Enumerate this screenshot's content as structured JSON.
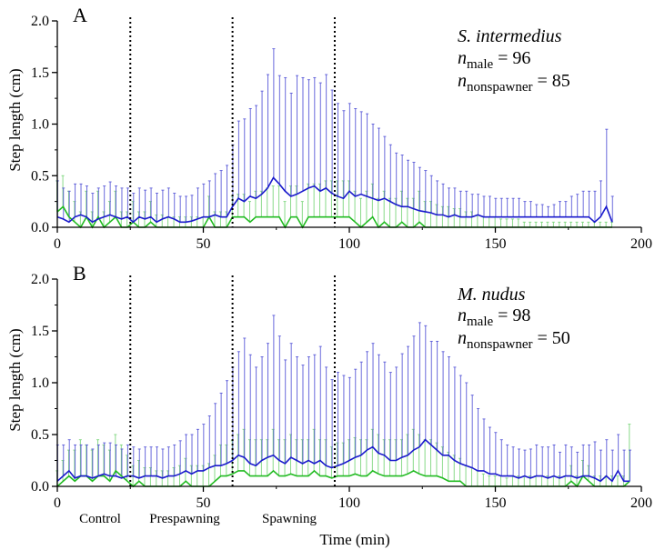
{
  "figure": {
    "xlabel": "Time (min)",
    "ylabel": "Step length (cm)",
    "phase_labels": [
      "Control",
      "Prespawning",
      "Spawning"
    ]
  },
  "colors": {
    "male": "#1a1acc",
    "nonspawner": "#22bb22",
    "male_err": "#5a5ad8",
    "nonspawner_err": "#7dd67d",
    "phase_line": "#000000"
  },
  "chart_data": [
    {
      "type": "line",
      "panel_label": "A",
      "species": "S. intermedius",
      "n_lines": [
        {
          "base": "n",
          "sub": "male",
          "rest": " = 96"
        },
        {
          "base": "n",
          "sub": "nonspawner",
          "rest": " = 85"
        }
      ],
      "xlim": [
        0,
        200
      ],
      "ylim": [
        0,
        2.0
      ],
      "xticks": [
        "0",
        "50",
        "100",
        "150",
        "200"
      ],
      "yticks": [
        "0.0",
        "0.5",
        "1.0",
        "1.5",
        "2.0"
      ],
      "phase_boundaries": [
        25,
        60,
        95
      ],
      "x": [
        0,
        2,
        4,
        6,
        8,
        10,
        12,
        14,
        16,
        18,
        20,
        22,
        24,
        26,
        28,
        30,
        32,
        34,
        36,
        38,
        40,
        42,
        44,
        46,
        48,
        50,
        52,
        54,
        56,
        58,
        60,
        62,
        64,
        66,
        68,
        70,
        72,
        74,
        76,
        78,
        80,
        82,
        84,
        86,
        88,
        90,
        92,
        94,
        96,
        98,
        100,
        102,
        104,
        106,
        108,
        110,
        112,
        114,
        116,
        118,
        120,
        122,
        124,
        126,
        128,
        130,
        132,
        134,
        136,
        138,
        140,
        142,
        144,
        146,
        148,
        150,
        152,
        154,
        156,
        158,
        160,
        162,
        164,
        166,
        168,
        170,
        172,
        174,
        176,
        178,
        180,
        182,
        184,
        186,
        188,
        190
      ],
      "series": [
        {
          "name": "male",
          "values": [
            0.1,
            0.08,
            0.05,
            0.1,
            0.12,
            0.1,
            0.05,
            0.08,
            0.1,
            0.12,
            0.1,
            0.08,
            0.1,
            0.05,
            0.1,
            0.08,
            0.1,
            0.05,
            0.08,
            0.1,
            0.08,
            0.05,
            0.05,
            0.06,
            0.08,
            0.1,
            0.1,
            0.12,
            0.1,
            0.1,
            0.2,
            0.28,
            0.25,
            0.3,
            0.28,
            0.32,
            0.38,
            0.48,
            0.42,
            0.35,
            0.3,
            0.32,
            0.35,
            0.38,
            0.4,
            0.35,
            0.38,
            0.33,
            0.3,
            0.28,
            0.35,
            0.3,
            0.32,
            0.3,
            0.28,
            0.26,
            0.28,
            0.25,
            0.22,
            0.2,
            0.2,
            0.18,
            0.16,
            0.15,
            0.14,
            0.12,
            0.12,
            0.1,
            0.12,
            0.1,
            0.1,
            0.1,
            0.12,
            0.1,
            0.1,
            0.1,
            0.1,
            0.1,
            0.1,
            0.1,
            0.1,
            0.1,
            0.1,
            0.1,
            0.1,
            0.1,
            0.1,
            0.1,
            0.1,
            0.1,
            0.1,
            0.1,
            0.05,
            0.1,
            0.2,
            0.05
          ],
          "err": [
            0.35,
            0.3,
            0.3,
            0.32,
            0.3,
            0.3,
            0.28,
            0.3,
            0.3,
            0.32,
            0.3,
            0.3,
            0.28,
            0.28,
            0.28,
            0.28,
            0.28,
            0.28,
            0.28,
            0.28,
            0.25,
            0.25,
            0.25,
            0.25,
            0.3,
            0.32,
            0.35,
            0.4,
            0.45,
            0.5,
            0.6,
            0.75,
            0.8,
            0.85,
            0.9,
            1.0,
            1.1,
            1.25,
            1.05,
            1.1,
            1.0,
            1.15,
            1.1,
            1.05,
            1.05,
            1.05,
            1.1,
            1.0,
            0.9,
            0.85,
            0.85,
            0.85,
            0.8,
            0.8,
            0.72,
            0.7,
            0.6,
            0.55,
            0.5,
            0.5,
            0.45,
            0.45,
            0.42,
            0.4,
            0.36,
            0.33,
            0.3,
            0.28,
            0.26,
            0.25,
            0.25,
            0.22,
            0.2,
            0.2,
            0.2,
            0.18,
            0.18,
            0.18,
            0.18,
            0.18,
            0.15,
            0.15,
            0.12,
            0.12,
            0.1,
            0.12,
            0.15,
            0.15,
            0.2,
            0.22,
            0.25,
            0.25,
            0.3,
            0.35,
            0.75,
            0.25
          ]
        },
        {
          "name": "nonspawner",
          "values": [
            0.15,
            0.2,
            0.1,
            0.05,
            0.0,
            0.1,
            0.0,
            0.1,
            0.0,
            0.05,
            0.1,
            0.0,
            0.0,
            0.05,
            0.0,
            0.0,
            0.05,
            0.0,
            0.0,
            0.0,
            0.0,
            0.0,
            0.0,
            0.0,
            0.0,
            0.0,
            0.1,
            0.0,
            0.0,
            0.0,
            0.1,
            0.1,
            0.1,
            0.05,
            0.1,
            0.1,
            0.1,
            0.1,
            0.1,
            0.0,
            0.1,
            0.1,
            0.0,
            0.1,
            0.1,
            0.1,
            0.1,
            0.1,
            0.1,
            0.1,
            0.1,
            0.05,
            0.0,
            0.05,
            0.1,
            0.0,
            0.05,
            0.0,
            0.0,
            0.05,
            0.0,
            0.0,
            0.05,
            0.0,
            0.0,
            0.0,
            0.0,
            0.0,
            0.0,
            0.0,
            0.0,
            0.0,
            0.0,
            0.0,
            0.0,
            0.0,
            0.0,
            0.0,
            0.0,
            0.0,
            0.0,
            0.0,
            0.0,
            0.0,
            0.0,
            0.0,
            0.0,
            0.0,
            0.0,
            0.0,
            0.0,
            0.0,
            0.0,
            0.0,
            0.0,
            0.0
          ],
          "err": [
            0.3,
            0.3,
            0.25,
            0.2,
            0.15,
            0.25,
            0.15,
            0.25,
            0.15,
            0.2,
            0.25,
            0.15,
            0.15,
            0.2,
            0.15,
            0.15,
            0.2,
            0.12,
            0.12,
            0.1,
            0.1,
            0.1,
            0.1,
            0.1,
            0.1,
            0.1,
            0.2,
            0.15,
            0.15,
            0.15,
            0.2,
            0.22,
            0.22,
            0.2,
            0.25,
            0.25,
            0.28,
            0.3,
            0.3,
            0.25,
            0.3,
            0.3,
            0.25,
            0.32,
            0.32,
            0.32,
            0.35,
            0.35,
            0.35,
            0.35,
            0.35,
            0.3,
            0.28,
            0.3,
            0.32,
            0.28,
            0.3,
            0.28,
            0.28,
            0.3,
            0.28,
            0.28,
            0.3,
            0.25,
            0.25,
            0.22,
            0.2,
            0.2,
            0.18,
            0.18,
            0.15,
            0.15,
            0.12,
            0.1,
            0.1,
            0.1,
            0.08,
            0.08,
            0.08,
            0.08,
            0.05,
            0.05,
            0.05,
            0.05,
            0.05,
            0.05,
            0.05,
            0.05,
            0.05,
            0.05,
            0.05,
            0.05,
            0.05,
            0.05,
            0.05,
            0.05
          ]
        }
      ]
    },
    {
      "type": "line",
      "panel_label": "B",
      "species": "M. nudus",
      "n_lines": [
        {
          "base": "n",
          "sub": "male",
          "rest": " = 98"
        },
        {
          "base": "n",
          "sub": "nonspawner",
          "rest": " = 50"
        }
      ],
      "xlim": [
        0,
        200
      ],
      "ylim": [
        0,
        2.0
      ],
      "xticks": [
        "0",
        "50",
        "100",
        "150",
        "200"
      ],
      "yticks": [
        "0.0",
        "0.5",
        "1.0",
        "1.5",
        "2.0"
      ],
      "phase_boundaries": [
        25,
        60,
        95
      ],
      "x": [
        0,
        2,
        4,
        6,
        8,
        10,
        12,
        14,
        16,
        18,
        20,
        22,
        24,
        26,
        28,
        30,
        32,
        34,
        36,
        38,
        40,
        42,
        44,
        46,
        48,
        50,
        52,
        54,
        56,
        58,
        60,
        62,
        64,
        66,
        68,
        70,
        72,
        74,
        76,
        78,
        80,
        82,
        84,
        86,
        88,
        90,
        92,
        94,
        96,
        98,
        100,
        102,
        104,
        106,
        108,
        110,
        112,
        114,
        116,
        118,
        120,
        122,
        124,
        126,
        128,
        130,
        132,
        134,
        136,
        138,
        140,
        142,
        144,
        146,
        148,
        150,
        152,
        154,
        156,
        158,
        160,
        162,
        164,
        166,
        168,
        170,
        172,
        174,
        176,
        178,
        180,
        182,
        184,
        186,
        188,
        190,
        192,
        194,
        196
      ],
      "series": [
        {
          "name": "male",
          "values": [
            0.05,
            0.1,
            0.15,
            0.08,
            0.1,
            0.1,
            0.08,
            0.1,
            0.12,
            0.1,
            0.1,
            0.08,
            0.1,
            0.1,
            0.08,
            0.1,
            0.1,
            0.1,
            0.08,
            0.1,
            0.1,
            0.12,
            0.15,
            0.12,
            0.15,
            0.15,
            0.18,
            0.2,
            0.2,
            0.22,
            0.25,
            0.3,
            0.28,
            0.22,
            0.2,
            0.25,
            0.28,
            0.3,
            0.25,
            0.22,
            0.28,
            0.25,
            0.22,
            0.25,
            0.22,
            0.25,
            0.2,
            0.18,
            0.2,
            0.22,
            0.25,
            0.28,
            0.3,
            0.35,
            0.38,
            0.32,
            0.3,
            0.25,
            0.25,
            0.28,
            0.3,
            0.35,
            0.38,
            0.45,
            0.4,
            0.35,
            0.3,
            0.3,
            0.25,
            0.22,
            0.2,
            0.18,
            0.15,
            0.15,
            0.12,
            0.12,
            0.1,
            0.1,
            0.1,
            0.08,
            0.1,
            0.08,
            0.1,
            0.1,
            0.08,
            0.1,
            0.08,
            0.1,
            0.1,
            0.08,
            0.1,
            0.1,
            0.08,
            0.05,
            0.1,
            0.05,
            0.15,
            0.05,
            0.05
          ],
          "err": [
            0.35,
            0.3,
            0.3,
            0.32,
            0.3,
            0.3,
            0.28,
            0.3,
            0.3,
            0.32,
            0.3,
            0.28,
            0.3,
            0.28,
            0.28,
            0.28,
            0.28,
            0.28,
            0.28,
            0.28,
            0.3,
            0.32,
            0.35,
            0.38,
            0.4,
            0.45,
            0.5,
            0.6,
            0.7,
            0.8,
            0.9,
            1.0,
            1.15,
            1.05,
            0.95,
            1.0,
            1.1,
            1.35,
            1.2,
            1.0,
            1.1,
            1.0,
            0.95,
            1.0,
            1.05,
            1.1,
            0.95,
            0.85,
            0.9,
            0.85,
            0.8,
            0.85,
            0.9,
            0.95,
            1.0,
            0.95,
            0.9,
            0.85,
            0.9,
            1.0,
            1.05,
            1.1,
            1.2,
            1.1,
            1.0,
            1.05,
            1.0,
            0.95,
            0.9,
            0.85,
            0.8,
            0.7,
            0.6,
            0.5,
            0.45,
            0.4,
            0.35,
            0.3,
            0.28,
            0.28,
            0.25,
            0.28,
            0.3,
            0.28,
            0.3,
            0.3,
            0.25,
            0.3,
            0.28,
            0.25,
            0.3,
            0.3,
            0.35,
            0.3,
            0.35,
            0.3,
            0.35,
            0.3,
            0.3
          ]
        },
        {
          "name": "nonspawner",
          "values": [
            0.0,
            0.05,
            0.1,
            0.05,
            0.1,
            0.1,
            0.05,
            0.1,
            0.1,
            0.05,
            0.15,
            0.1,
            0.05,
            0.0,
            0.05,
            0.0,
            0.0,
            0.0,
            0.0,
            0.0,
            0.0,
            0.0,
            0.05,
            0.0,
            0.0,
            0.0,
            0.0,
            0.05,
            0.1,
            0.1,
            0.12,
            0.15,
            0.15,
            0.1,
            0.1,
            0.1,
            0.1,
            0.15,
            0.1,
            0.1,
            0.12,
            0.1,
            0.1,
            0.1,
            0.15,
            0.1,
            0.1,
            0.08,
            0.1,
            0.1,
            0.1,
            0.12,
            0.1,
            0.1,
            0.15,
            0.12,
            0.1,
            0.1,
            0.1,
            0.1,
            0.12,
            0.15,
            0.12,
            0.1,
            0.1,
            0.1,
            0.08,
            0.05,
            0.05,
            0.05,
            0.0,
            0.0,
            0.0,
            0.0,
            0.0,
            0.0,
            0.0,
            0.0,
            0.0,
            0.0,
            0.0,
            0.0,
            0.0,
            0.0,
            0.0,
            0.0,
            0.0,
            0.0,
            0.05,
            0.0,
            0.1,
            0.05,
            0.0,
            0.0,
            0.0,
            0.0,
            0.0,
            0.0,
            0.05
          ],
          "err": [
            0.15,
            0.2,
            0.25,
            0.3,
            0.35,
            0.3,
            0.3,
            0.35,
            0.3,
            0.3,
            0.35,
            0.3,
            0.25,
            0.2,
            0.2,
            0.18,
            0.18,
            0.15,
            0.15,
            0.15,
            0.18,
            0.2,
            0.22,
            0.2,
            0.2,
            0.2,
            0.22,
            0.25,
            0.3,
            0.3,
            0.32,
            0.35,
            0.4,
            0.35,
            0.35,
            0.35,
            0.35,
            0.4,
            0.35,
            0.35,
            0.38,
            0.35,
            0.35,
            0.35,
            0.4,
            0.35,
            0.35,
            0.3,
            0.32,
            0.32,
            0.35,
            0.35,
            0.35,
            0.35,
            0.4,
            0.38,
            0.35,
            0.35,
            0.35,
            0.35,
            0.38,
            0.4,
            0.38,
            0.35,
            0.35,
            0.32,
            0.3,
            0.28,
            0.25,
            0.22,
            0.2,
            0.18,
            0.15,
            0.12,
            0.1,
            0.1,
            0.1,
            0.08,
            0.1,
            0.1,
            0.1,
            0.1,
            0.1,
            0.1,
            0.1,
            0.1,
            0.1,
            0.1,
            0.15,
            0.1,
            0.15,
            0.15,
            0.1,
            0.1,
            0.1,
            0.1,
            0.1,
            0.1,
            0.55
          ]
        }
      ]
    }
  ]
}
